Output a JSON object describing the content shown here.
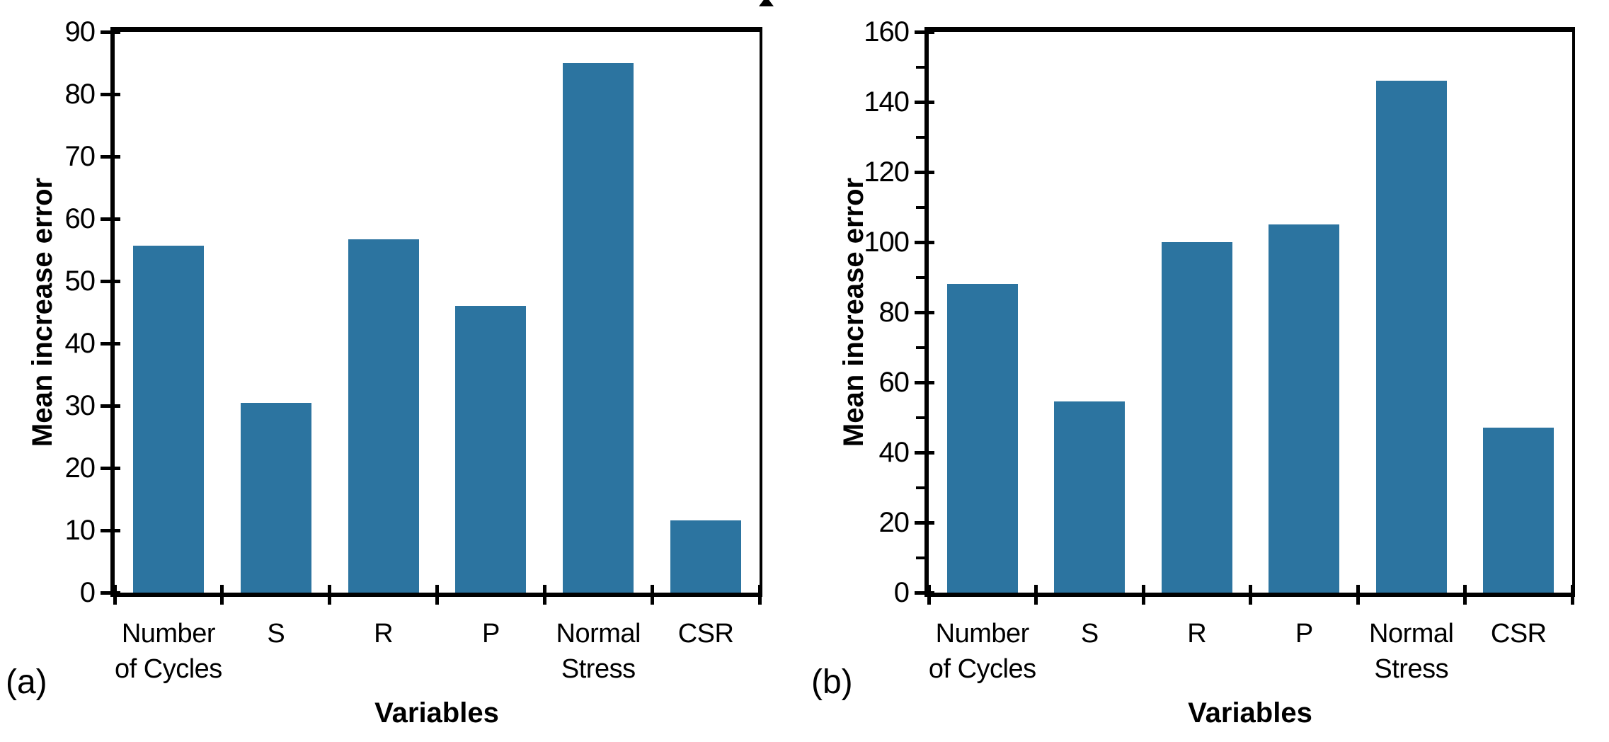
{
  "figure": {
    "background": "#FFFFFF",
    "bar_color": "#2C74A0",
    "axis_color": "#000000",
    "cropped_title_fragment": "partial letter descender from cropped-off title at top edge"
  },
  "chart_data": [
    {
      "type": "bar",
      "panel_label": "(a)",
      "title": "",
      "xlabel": "Variables",
      "ylabel": "Mean increase error",
      "categories": [
        "Number\nof Cycles",
        "S",
        "R",
        "P",
        "Normal\nStress",
        "CSR"
      ],
      "values": [
        55.7,
        30.5,
        56.7,
        46,
        85,
        11.6
      ],
      "ylim": [
        0,
        90
      ],
      "ytick_step": 10,
      "minor_tick_step": null,
      "grid": false,
      "legend": null
    },
    {
      "type": "bar",
      "panel_label": "(b)",
      "title": "",
      "xlabel": "Variables",
      "ylabel": "Mean increase error",
      "categories": [
        "Number\nof Cycles",
        "S",
        "R",
        "P",
        "Normal\nStress",
        "CSR"
      ],
      "values": [
        88,
        54.5,
        100,
        105,
        146,
        47
      ],
      "ylim": [
        0,
        160
      ],
      "ytick_step": 20,
      "minor_tick_step": 10,
      "grid": false,
      "legend": null
    }
  ]
}
